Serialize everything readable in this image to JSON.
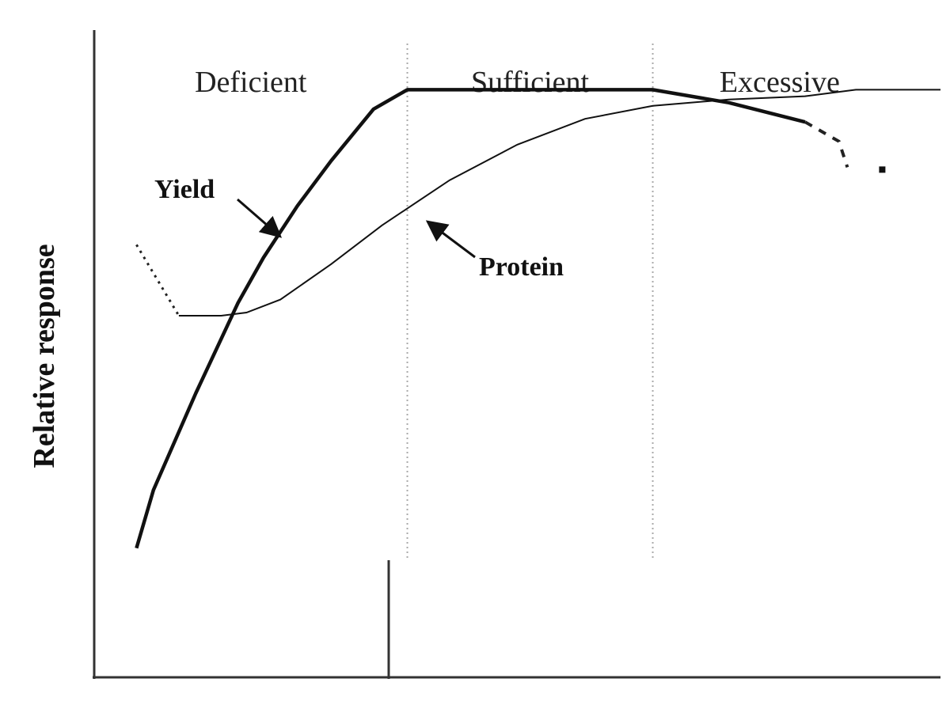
{
  "chart_data": {
    "type": "line",
    "title": "",
    "xlabel": "",
    "ylabel": "Relative response",
    "xlim": [
      0,
      100
    ],
    "ylim": [
      0,
      100
    ],
    "grid": false,
    "zones": [
      {
        "label": "Deficient",
        "from": 0,
        "to": 37
      },
      {
        "label": "Sufficient",
        "from": 37,
        "to": 66
      },
      {
        "label": "Excessive",
        "from": 66,
        "to": 100
      }
    ],
    "series": [
      {
        "name": "Yield",
        "style": "thick",
        "x": [
          5,
          7,
          12,
          17,
          20,
          24,
          28,
          33,
          37,
          45,
          50,
          66,
          75,
          84
        ],
        "y": [
          20,
          29,
          44,
          58,
          65,
          73,
          80,
          88,
          91,
          91,
          91,
          91,
          89,
          86
        ],
        "continuation": {
          "style": "dotted",
          "x": [
            84,
            88,
            89
          ],
          "y": [
            86,
            83,
            79
          ]
        }
      },
      {
        "name": "Protein",
        "style": "thin",
        "x": [
          10,
          15,
          18,
          22,
          28,
          34,
          42,
          50,
          58,
          66,
          75,
          84,
          90,
          100
        ],
        "y": [
          56,
          56,
          56.5,
          58.5,
          64,
          70,
          77,
          82.5,
          86.5,
          88.5,
          89.5,
          90,
          91,
          91
        ],
        "continuation": {
          "style": "dotted",
          "x": [
            5,
            10
          ],
          "y": [
            67,
            56
          ]
        }
      }
    ],
    "annotations": [
      {
        "text": "Yield",
        "arrow_to_series": "Yield"
      },
      {
        "text": "Protein",
        "arrow_to_series": "Protein"
      }
    ]
  }
}
